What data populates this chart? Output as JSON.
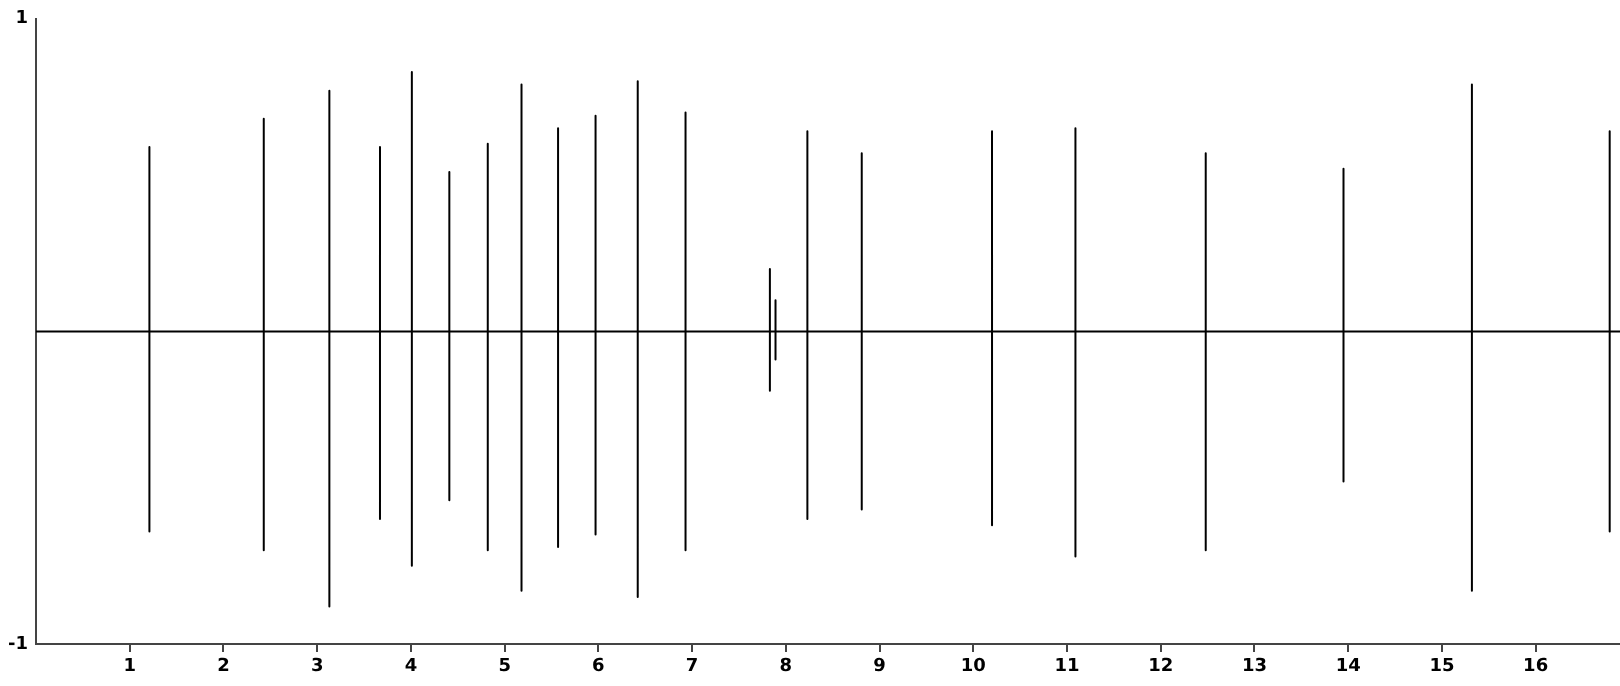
{
  "chart_data": {
    "type": "line",
    "x": [
      0,
      1.21,
      1.21,
      1.21,
      1.21,
      2.43,
      2.43,
      2.43,
      2.43,
      3.13,
      3.13,
      3.13,
      3.13,
      3.67,
      3.67,
      3.67,
      3.67,
      4.01,
      4.01,
      4.01,
      4.01,
      4.41,
      4.41,
      4.41,
      4.41,
      4.82,
      4.82,
      4.82,
      4.82,
      5.18,
      5.18,
      5.18,
      5.18,
      5.57,
      5.57,
      5.57,
      5.57,
      5.97,
      5.97,
      5.97,
      5.97,
      6.42,
      6.42,
      6.42,
      6.42,
      6.93,
      6.93,
      6.93,
      6.93,
      7.83,
      7.83,
      7.83,
      7.83,
      7.89,
      7.89,
      7.89,
      7.89,
      8.23,
      8.23,
      8.23,
      8.23,
      8.81,
      8.81,
      8.81,
      8.81,
      10.2,
      10.2,
      10.2,
      10.2,
      11.09,
      11.09,
      11.09,
      11.09,
      12.48,
      12.48,
      12.48,
      12.48,
      13.95,
      13.95,
      13.95,
      13.95,
      15.32,
      15.32,
      15.32,
      15.32,
      16.79,
      16.79,
      16.79,
      16.79,
      16.9
    ],
    "series": [
      {
        "color": "#000000",
        "values": [
          0,
          0,
          0.59,
          -0.64,
          0,
          0,
          0.68,
          -0.7,
          0,
          0,
          0.77,
          -0.88,
          0,
          0,
          0.59,
          -0.6,
          0,
          0,
          0.83,
          -0.75,
          0,
          0,
          0.51,
          -0.54,
          0,
          0,
          0.6,
          -0.7,
          0,
          0,
          0.79,
          -0.83,
          0,
          0,
          0.65,
          -0.69,
          0,
          0,
          0.69,
          -0.65,
          0,
          0,
          0.8,
          -0.85,
          0,
          0,
          0.7,
          -0.7,
          0,
          0,
          0.2,
          -0.19,
          0,
          0,
          0.1,
          -0.09,
          0,
          0,
          0.64,
          -0.6,
          0,
          0,
          0.57,
          -0.57,
          0,
          0,
          0.64,
          -0.62,
          0,
          0,
          0.65,
          -0.72,
          0,
          0,
          0.57,
          -0.7,
          0,
          0,
          0.52,
          -0.48,
          0,
          0,
          0.79,
          -0.83,
          0,
          0,
          0.64,
          -0.64,
          0,
          0
        ]
      }
    ],
    "xlim": [
      0,
      16.9
    ],
    "xticks": [
      1,
      2,
      3,
      4,
      5,
      6,
      7,
      8,
      9,
      10,
      11,
      12,
      13,
      14,
      15,
      16
    ],
    "ylim": [
      -1,
      1
    ],
    "yticks": [
      -1,
      1
    ],
    "grid": false,
    "legend": false,
    "marker": "none",
    "line_style": "solid"
  }
}
